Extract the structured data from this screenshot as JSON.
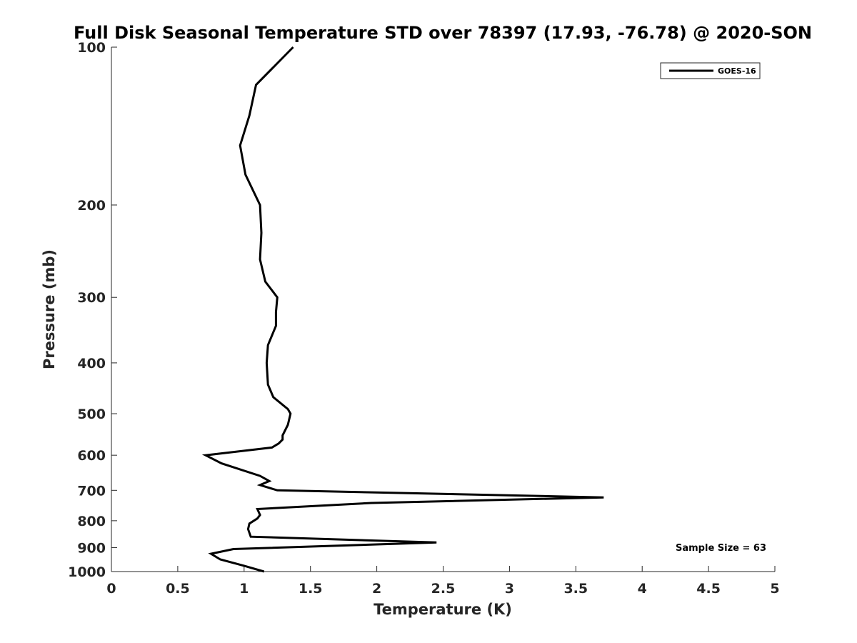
{
  "chart_data": {
    "type": "line",
    "title": "Full Disk Seasonal Temperature STD over 78397 (17.93, -76.78) @ 2020-SON",
    "xlabel": "Temperature (K)",
    "ylabel": "Pressure (mb)",
    "xlim": [
      0,
      5
    ],
    "ylim": [
      100,
      1000
    ],
    "y_scale": "log",
    "y_reversed": true,
    "x_ticks": [
      0,
      0.5,
      1,
      1.5,
      2,
      2.5,
      3,
      3.5,
      4,
      4.5,
      5
    ],
    "x_tick_labels": [
      "0",
      "0.5",
      "1",
      "1.5",
      "2",
      "2.5",
      "3",
      "3.5",
      "4",
      "4.5",
      "5"
    ],
    "y_ticks": [
      100,
      200,
      300,
      400,
      500,
      600,
      700,
      800,
      900,
      1000
    ],
    "y_tick_labels": [
      "100",
      "200",
      "300",
      "400",
      "500",
      "600",
      "700",
      "800",
      "900",
      "1000"
    ],
    "grid": false,
    "legend_position": "top-right",
    "series": [
      {
        "name": "GOES-16",
        "color": "#000000",
        "points": [
          [
            1.37,
            100
          ],
          [
            1.09,
            118
          ],
          [
            1.04,
            135
          ],
          [
            0.97,
            154
          ],
          [
            1.01,
            175
          ],
          [
            1.12,
            200
          ],
          [
            1.13,
            226
          ],
          [
            1.12,
            254
          ],
          [
            1.16,
            280
          ],
          [
            1.25,
            300
          ],
          [
            1.24,
            320
          ],
          [
            1.24,
            340
          ],
          [
            1.18,
            370
          ],
          [
            1.17,
            400
          ],
          [
            1.18,
            440
          ],
          [
            1.22,
            465
          ],
          [
            1.33,
            490
          ],
          [
            1.35,
            500
          ],
          [
            1.33,
            525
          ],
          [
            1.29,
            550
          ],
          [
            1.29,
            560
          ],
          [
            1.26,
            570
          ],
          [
            1.21,
            580
          ],
          [
            0.71,
            600
          ],
          [
            0.83,
            622
          ],
          [
            1.12,
            657
          ],
          [
            1.19,
            672
          ],
          [
            1.12,
            684
          ],
          [
            1.25,
            700
          ],
          [
            3.71,
            722
          ],
          [
            1.96,
            740
          ],
          [
            1.1,
            760
          ],
          [
            1.12,
            780
          ],
          [
            1.1,
            792
          ],
          [
            1.04,
            810
          ],
          [
            1.03,
            830
          ],
          [
            1.05,
            858
          ],
          [
            2.45,
            880
          ],
          [
            0.92,
            906
          ],
          [
            0.75,
            925
          ],
          [
            0.82,
            948
          ],
          [
            1.0,
            975
          ],
          [
            1.15,
            1000
          ]
        ]
      }
    ],
    "annotation": "Sample Size = 63"
  }
}
